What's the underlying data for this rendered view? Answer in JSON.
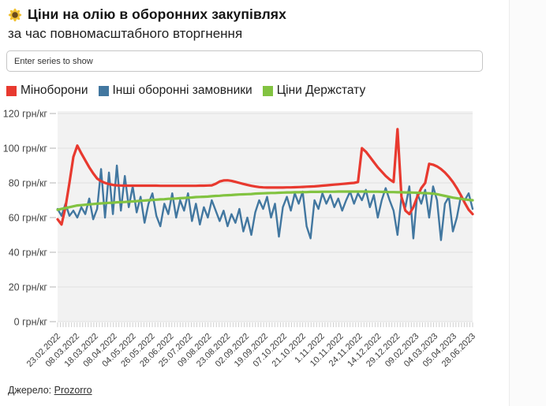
{
  "header": {
    "icon": "sunflower-icon",
    "title": "Ціни на олію в оборонних закупівлях",
    "subtitle": "за час повномасштабного вторгнення"
  },
  "search": {
    "placeholder": "Enter series to show"
  },
  "legend": [
    {
      "label": "Міноборони",
      "color": "#e8392f"
    },
    {
      "label": "Інші оборонні замовники",
      "color": "#4277a0"
    },
    {
      "label": "Ціни Держстату",
      "color": "#82c341"
    }
  ],
  "footer": {
    "source_label": "Джерело:",
    "source_link": "Prozorro"
  },
  "chart_data": {
    "type": "line",
    "title": "Ціни на олію в оборонних закупівлях",
    "subtitle": "за час повномасштабного вторгнення",
    "ylabel": "грн/кг",
    "ylim": [
      0,
      120
    ],
    "ytick_step": 20,
    "ytick_labels_top_down": [
      "120 грн/кг",
      "100 грн/кг",
      "80 грн/кг",
      "60 грн/кг",
      "40 грн/кг",
      "20 грн/кг",
      "0 грн/кг"
    ],
    "x_tick_labels": [
      "23.02.2022",
      "08.03.2022",
      "18.03.2022",
      "08.04.2022",
      "04.05.2022",
      "26.05.2022",
      "28.06.2022",
      "25.07.2022",
      "09.08.2022",
      "23.08.2022",
      "02.09.2022",
      "19.09.2022",
      "07.10.2022",
      "21.10.2022",
      "1.11.2022",
      "10.11.2022",
      "24.11.2022",
      "14.12.2022",
      "29.12.2022",
      "09.02.2023",
      "04.03.2023",
      "05.04.2023",
      "28.06.2023"
    ],
    "x_label_rotation": -45,
    "grid": true,
    "legend_position": "top",
    "minor_tick_count": 150,
    "colors": {
      "plot_background": "#f2f2f2",
      "gridline": "#e0e0e0",
      "minor_tick": "#cfcfcf",
      "y_tick_dash": "#c9c9c9",
      "axis_text": "#3c3c3c"
    },
    "draw_order": [
      1,
      0,
      2
    ],
    "series": [
      {
        "name": "Міноборони",
        "color": "#e8392f",
        "stroke_width": 3.2,
        "values": [
          59,
          56,
          66,
          80,
          95,
          101.5,
          97,
          93,
          89,
          85.5,
          82.5,
          81,
          80,
          79.3,
          78.8,
          78.6,
          78.5,
          78.4,
          78.4,
          78.4,
          78.4,
          78.4,
          78.4,
          78.4,
          78.4,
          78.4,
          78.3,
          78.3,
          78.3,
          78.3,
          78.3,
          78.3,
          78.3,
          78.3,
          78.3,
          78.3,
          78.4,
          78.4,
          78.5,
          78.6,
          79.5,
          80.8,
          81.4,
          81.5,
          81.2,
          80.6,
          80,
          79.4,
          78.8,
          78.3,
          77.9,
          77.6,
          77.4,
          77.3,
          77.3,
          77.3,
          77.3,
          77.3,
          77.4,
          77.4,
          77.5,
          77.6,
          77.7,
          77.8,
          77.9,
          78,
          78.2,
          78.4,
          78.6,
          78.8,
          79,
          79.2,
          79.4,
          79.6,
          79.8,
          80,
          80.5,
          100,
          98,
          95,
          92,
          89,
          86.5,
          84,
          82,
          80.5,
          111,
          72,
          64,
          62,
          66,
          72,
          77,
          80,
          91,
          90.5,
          89.5,
          88,
          86,
          83.5,
          80.5,
          77,
          73,
          68.5,
          64.5,
          62
        ]
      },
      {
        "name": "Інші оборонні замовники",
        "color": "#4277a0",
        "stroke_width": 2.4,
        "values": [
          65,
          61,
          68,
          61,
          64,
          60,
          66,
          62,
          71,
          59,
          65,
          88,
          60,
          86,
          62,
          90,
          64,
          84,
          66,
          78,
          63,
          72,
          57,
          68,
          74,
          61,
          55,
          68,
          62,
          74,
          60,
          70,
          64,
          74,
          58,
          68,
          56,
          66,
          60,
          70,
          64,
          58,
          64,
          55,
          62,
          57,
          65,
          52,
          60,
          50,
          63,
          70,
          65,
          72,
          60,
          68,
          49,
          66,
          72,
          64,
          74,
          68,
          75,
          55,
          48,
          70,
          65,
          74,
          68,
          73,
          66,
          71,
          64,
          70,
          75,
          68,
          74,
          70,
          76,
          66,
          73,
          60,
          70,
          77,
          70,
          64,
          50,
          72,
          66,
          78,
          48,
          74,
          68,
          76,
          60,
          78,
          70,
          47,
          68,
          72,
          52,
          60,
          72,
          70,
          74,
          65
        ]
      },
      {
        "name": "Ціни Держстату",
        "color": "#82c341",
        "stroke_width": 3.2,
        "values": [
          64.5,
          65,
          65.5,
          66,
          66.5,
          67,
          67.2,
          67.4,
          67.6,
          67.8,
          68,
          68.2,
          68.3,
          68.5,
          68.6,
          68.8,
          68.9,
          69,
          69.2,
          69.3,
          69.5,
          69.7,
          69.8,
          70,
          70.2,
          70.3,
          70.5,
          70.6,
          70.8,
          70.9,
          71,
          71.2,
          71.3,
          71.5,
          71.6,
          71.8,
          71.9,
          72,
          72.1,
          72.3,
          72.5,
          72.6,
          72.8,
          72.9,
          73,
          73.2,
          73.3,
          73.4,
          73.5,
          73.6,
          73.8,
          73.9,
          74,
          74.1,
          74.2,
          74.2,
          74.3,
          74.4,
          74.5,
          74.5,
          74.6,
          74.6,
          74.7,
          74.7,
          74.8,
          74.8,
          74.8,
          74.9,
          74.9,
          74.9,
          74.9,
          75,
          75,
          75,
          75,
          75,
          75,
          75,
          75,
          74.9,
          74.9,
          74.9,
          74.8,
          74.8,
          74.7,
          74.7,
          74.6,
          74.6,
          74.5,
          74.5,
          74.4,
          74.3,
          74.2,
          74.1,
          74,
          73.8,
          73.5,
          73,
          72.5,
          72,
          71.5,
          71.2,
          70.8,
          70.5,
          70.2,
          70
        ]
      }
    ]
  }
}
